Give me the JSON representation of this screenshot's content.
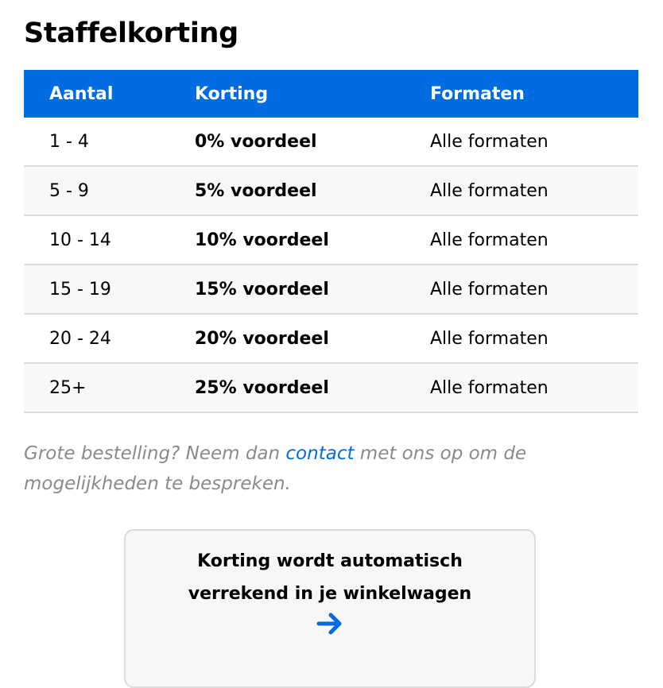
{
  "title": "Staffelkorting",
  "table": {
    "headers": [
      "Aantal",
      "Korting",
      "Formaten"
    ],
    "rows": [
      [
        "1 - 4",
        "0% voordeel",
        "Alle formaten"
      ],
      [
        "5 - 9",
        "5% voordeel",
        "Alle formaten"
      ],
      [
        "10 - 14",
        "10% voordeel",
        "Alle formaten"
      ],
      [
        "15 - 19",
        "15% voordeel",
        "Alle formaten"
      ],
      [
        "20 - 24",
        "20% voordeel",
        "Alle formaten"
      ],
      [
        "25+",
        "25% voordeel",
        "Alle formaten"
      ]
    ]
  },
  "note": {
    "before": "Grote bestelling? Neem dan ",
    "link": "contact",
    "after": " met ons op om de mogelijkheden te bespreken."
  },
  "cta": {
    "line1": "Korting wordt automatisch",
    "line2": "verrekend in je winkelwagen",
    "icon": "arrow-right-icon"
  },
  "colors": {
    "accent": "#006cdf",
    "muted_text": "#8a8a8a",
    "stripe": "#f8f8f8"
  }
}
